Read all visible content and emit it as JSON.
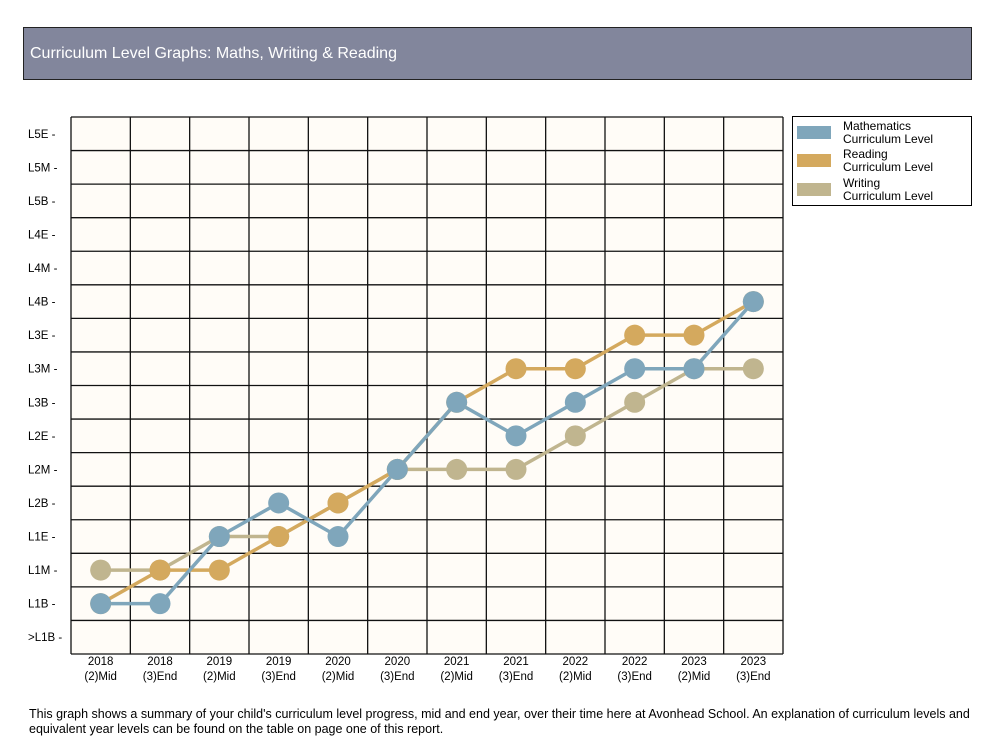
{
  "header": {
    "title": "Curriculum Level Graphs: Maths, Writing & Reading"
  },
  "colors": {
    "header_bg": "#82869c",
    "plot_bg": "#fffcf7",
    "grid": "#111111",
    "mathematics": "#7fa6bb",
    "reading": "#d4a95e",
    "writing": "#c0b58f"
  },
  "legend": {
    "items": [
      {
        "line1": "Mathematics",
        "line2": "Curriculum Level",
        "color": "#7fa6bb"
      },
      {
        "line1": "Reading",
        "line2": "Curriculum Level",
        "color": "#d4a95e"
      },
      {
        "line1": "Writing",
        "line2": "Curriculum Level",
        "color": "#c0b58f"
      }
    ]
  },
  "chart_data": {
    "type": "line",
    "title": "Curriculum Level Graphs: Maths, Writing & Reading",
    "xlabel": "",
    "ylabel": "",
    "grid": true,
    "legend_position": "top-right-outside",
    "x_years": [
      "2018",
      "2018",
      "2019",
      "2019",
      "2020",
      "2020",
      "2021",
      "2021",
      "2022",
      "2022",
      "2023",
      "2023"
    ],
    "x_periods": [
      "(2)Mid",
      "(3)End",
      "(2)Mid",
      "(3)End",
      "(2)Mid",
      "(3)End",
      "(2)Mid",
      "(3)End",
      "(2)Mid",
      "(3)End",
      "(2)Mid",
      "(3)End"
    ],
    "categories": [
      "2018 (2)Mid",
      "2018 (3)End",
      "2019 (2)Mid",
      "2019 (3)End",
      "2020 (2)Mid",
      "2020 (3)End",
      "2021 (2)Mid",
      "2021 (3)End",
      "2022 (2)Mid",
      "2022 (3)End",
      "2023 (2)Mid",
      "2023 (3)End"
    ],
    "y_levels": [
      ">L1B",
      "L1B",
      "L1M",
      "L1E",
      "L2B",
      "L2M",
      "L2E",
      "L3B",
      "L3M",
      "L3E",
      "L4B",
      "L4M",
      "L4E",
      "L5B",
      "L5M",
      "L5E"
    ],
    "y_tick_suffix": " -",
    "series": [
      {
        "name": "Mathematics Curriculum Level",
        "color": "#7fa6bb",
        "values": [
          "L1B",
          "L1B",
          "L1E",
          "L2B",
          "L1E",
          "L2M",
          "L3B",
          "L2E",
          "L3B",
          "L3M",
          "L3M",
          "L4B"
        ]
      },
      {
        "name": "Reading Curriculum Level",
        "color": "#d4a95e",
        "values": [
          "L1B",
          "L1M",
          "L1M",
          "L1E",
          "L2B",
          "L2M",
          "L3B",
          "L3M",
          "L3M",
          "L3E",
          "L3E",
          "L4B"
        ]
      },
      {
        "name": "Writing Curriculum Level",
        "color": "#c0b58f",
        "values": [
          "L1M",
          "L1M",
          "L1E",
          "L1E",
          "L2B",
          "L2M",
          "L2M",
          "L2M",
          "L2E",
          "L3B",
          "L3M",
          "L3M"
        ]
      }
    ]
  },
  "footnote": "This graph shows a summary of your child's curriculum level progress, mid and end year, over their time here at Avonhead School.  An explanation of curriculum levels and equivalent year levels can be found on the table on page one of this report."
}
